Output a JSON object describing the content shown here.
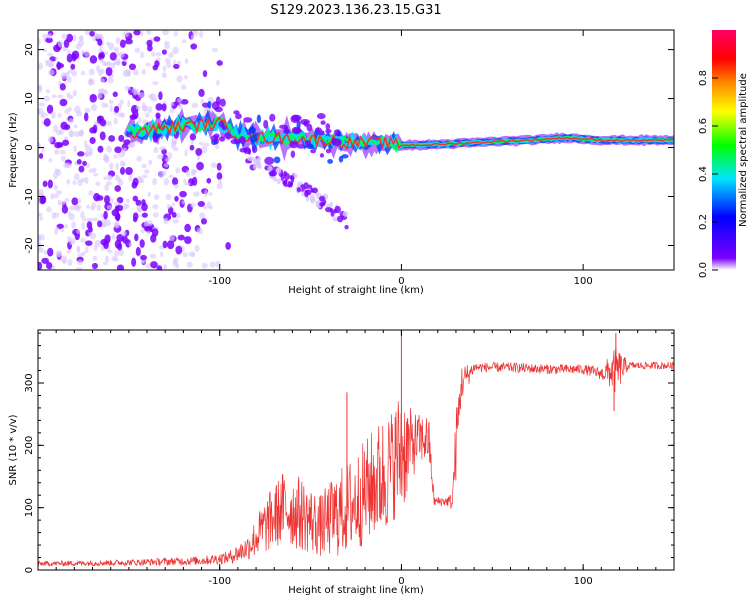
{
  "title": "S129.2023.136.23.15.G31",
  "colors": {
    "line": "#ee3333",
    "spectrum_dots": "#7a00ff",
    "spectrum_light": "#d9c6ff",
    "track": "#ff2a2a"
  },
  "chart_data": [
    {
      "type": "heatmap",
      "xlabel": "Height of straight line (km)",
      "ylabel": "Frequency (Hz)",
      "xlim": [
        -200,
        150
      ],
      "ylim": [
        -25,
        24
      ],
      "xticks": [
        -100,
        0,
        100
      ],
      "yticks": [
        -20,
        -10,
        0,
        10,
        20
      ],
      "colorbar": {
        "label": "Normalized spectral amplitude",
        "range": [
          0,
          1
        ],
        "ticks": [
          "0.0",
          "0.2",
          "0.4",
          "0.6",
          "0.8"
        ],
        "colormap": "rainbow (violet → blue → cyan → green → yellow → red → magenta)"
      },
      "features": [
        {
          "name": "noise",
          "x_range": [
            -200,
            -110
          ],
          "freq_range": [
            -25,
            24
          ],
          "amplitude": 0.2
        },
        {
          "name": "main_track",
          "x": [
            -150,
            -130,
            -115,
            -100,
            -90,
            -80,
            -70,
            -60,
            -50,
            -40,
            -30,
            -20,
            -10,
            0,
            10,
            30,
            50,
            70,
            90,
            110,
            130,
            150
          ],
          "freq": [
            3,
            4,
            4.5,
            5,
            2.5,
            2,
            2,
            2,
            1.5,
            1.5,
            1,
            1,
            1,
            0.5,
            0.5,
            0.8,
            1.2,
            1.5,
            2,
            1.5,
            1.5,
            1.5
          ],
          "amplitude": 0.9
        },
        {
          "name": "branch",
          "x": [
            -85,
            -70,
            -55,
            -40,
            -30
          ],
          "freq": [
            -2,
            -5,
            -8,
            -12,
            -15
          ],
          "amplitude": 0.3
        }
      ]
    },
    {
      "type": "line",
      "xlabel": "Height of straight line (km)",
      "ylabel": "SNR (10 * v/v)",
      "xlim": [
        -200,
        150
      ],
      "ylim": [
        0,
        385
      ],
      "xticks": [
        -100,
        0,
        100
      ],
      "yticks": [
        0,
        100,
        200,
        300
      ],
      "segments": [
        {
          "x": [
            -200,
            -150,
            -110,
            -95,
            -85,
            -75,
            -65,
            -55,
            -45,
            -35,
            -25,
            -15,
            -10,
            -5,
            0,
            5,
            10,
            15,
            18,
            22,
            25,
            28,
            30,
            33,
            40,
            60,
            80,
            100,
            110,
            118,
            125,
            140,
            150
          ],
          "mean": [
            10,
            12,
            15,
            20,
            35,
            70,
            100,
            90,
            70,
            90,
            110,
            140,
            150,
            170,
            190,
            200,
            210,
            210,
            110,
            110,
            110,
            110,
            200,
            300,
            325,
            325,
            322,
            322,
            315,
            320,
            328,
            328,
            328
          ],
          "spread": [
            4,
            5,
            7,
            10,
            20,
            45,
            60,
            60,
            50,
            70,
            80,
            90,
            100,
            90,
            110,
            60,
            40,
            40,
            8,
            8,
            8,
            15,
            60,
            30,
            8,
            8,
            8,
            8,
            10,
            40,
            6,
            6,
            6
          ]
        }
      ],
      "spikes": [
        {
          "x": -30,
          "y": 285
        },
        {
          "x": 0,
          "y": 385
        },
        {
          "x": 118,
          "y": 380
        },
        {
          "x": 117,
          "y": 255
        }
      ]
    }
  ]
}
